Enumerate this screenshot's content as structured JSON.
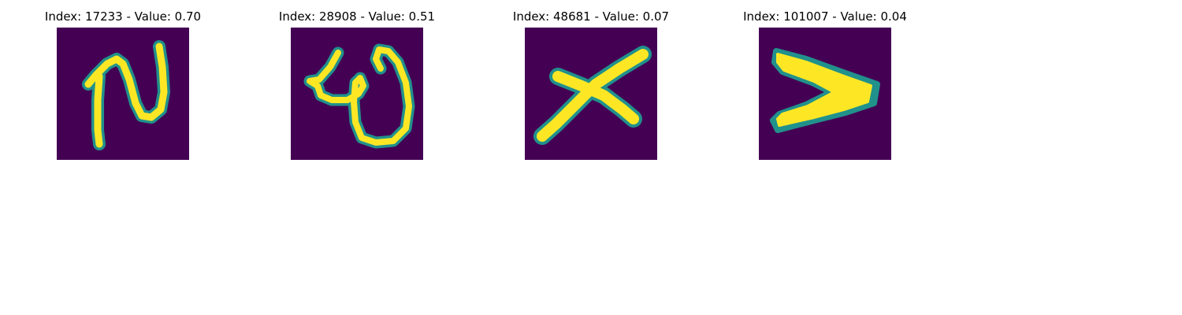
{
  "figure": {
    "background": "#ffffff",
    "colormap": "viridis",
    "panels": [
      {
        "title": "Index: 17233 - Value: 0.70",
        "glyph": "N-shaped-stroke",
        "background_color": "#440154",
        "stroke_color": "#fde725",
        "edge_color": "#21918c"
      },
      {
        "title": "Index: 28908 - Value: 0.51",
        "glyph": "loop-shaped-stroke",
        "background_color": "#440154",
        "stroke_color": "#fde725",
        "edge_color": "#21918c"
      },
      {
        "title": "Index: 48681 - Value: 0.07",
        "glyph": "x-shaped-stroke",
        "background_color": "#440154",
        "stroke_color": "#fde725",
        "edge_color": "#21918c"
      },
      {
        "title": "Index: 101007 - Value: 0.04",
        "glyph": "chevron-shaped-stroke",
        "background_color": "#440154",
        "stroke_color": "#fde725",
        "edge_color": "#21918c"
      }
    ]
  }
}
